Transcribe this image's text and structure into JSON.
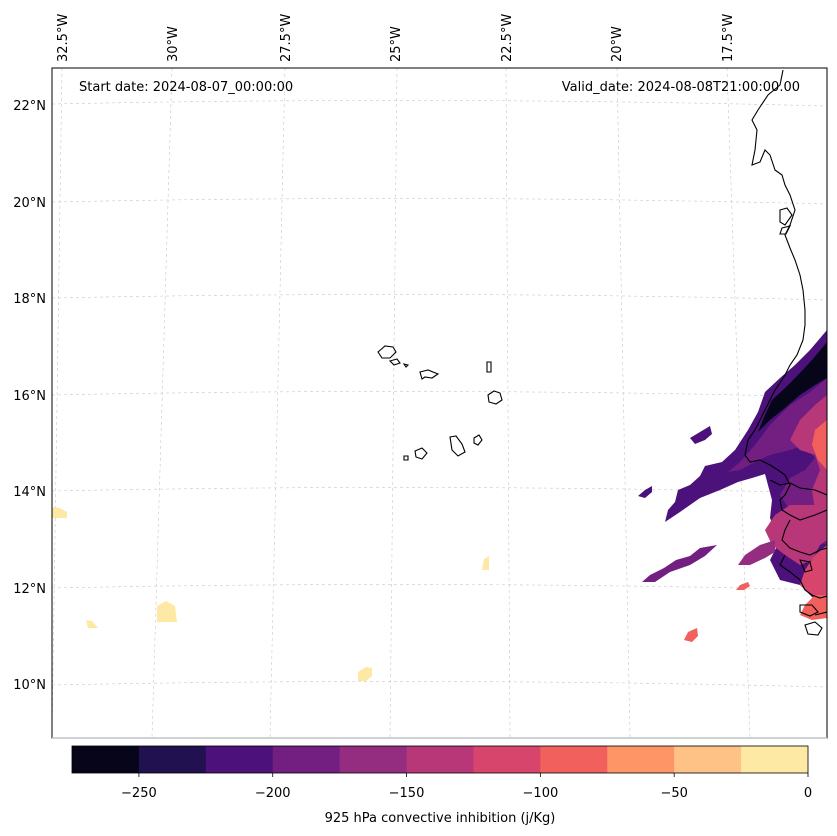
{
  "annotations": {
    "start_date": "Start date: 2024-08-07_00:00:00",
    "valid_date": "Valid_date: 2024-08-08T21:00:00.00"
  },
  "axes": {
    "lon_labels": [
      "32.5°W",
      "30°W",
      "27.5°W",
      "25°W",
      "22.5°W",
      "20°W",
      "17.5°W"
    ],
    "lat_labels": [
      "22°N",
      "20°N",
      "18°N",
      "16°N",
      "14°N",
      "12°N",
      "10°N"
    ]
  },
  "colorbar": {
    "title": "925 hPa convective inhibition (j/Kg)",
    "ticks": [
      "−250",
      "−200",
      "−150",
      "−100",
      "−50",
      "0"
    ],
    "colors": [
      "#07051a",
      "#221150",
      "#4c117a",
      "#721f81",
      "#942c80",
      "#b73779",
      "#d8456c",
      "#f1605d",
      "#fd9567",
      "#fec287",
      "#fde9a4"
    ],
    "range": [
      -275,
      0
    ],
    "step": 25
  }
}
